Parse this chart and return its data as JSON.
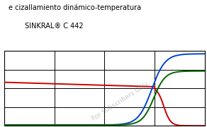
{
  "title1": "e cizallamiento dinámico-temperatura",
  "title2": "SINKRAL® C 442",
  "watermark": "For Subscribers Only",
  "bg_color": "#ffffff",
  "plot_bg_color": "#ffffff",
  "grid_color": "#000000",
  "line_colors": [
    "#cc0000",
    "#0044cc",
    "#006600"
  ],
  "figsize": [
    2.92,
    1.8
  ],
  "dpi": 100
}
